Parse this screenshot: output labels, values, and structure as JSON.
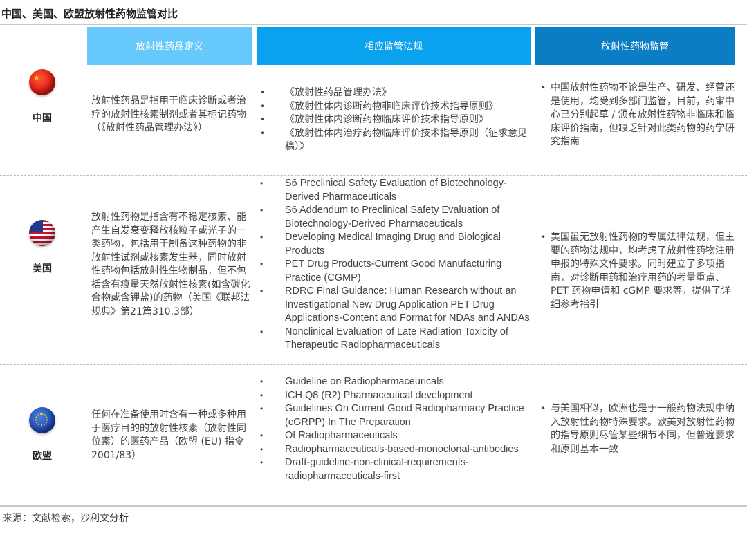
{
  "title": "中国、美国、欧盟放射性药物监管对比",
  "headers": [
    {
      "label": "放射性药品定义",
      "color": "#66c8fb"
    },
    {
      "label": "相应监管法规",
      "color": "#0aa2ee"
    },
    {
      "label": "放射性药物监管",
      "color": "#0a7dc4"
    }
  ],
  "rows": [
    {
      "country": "中国",
      "flag_icon": "china-flag",
      "definition": "放射性药品是指用于临床诊断或者治疗的放射性核素制剂或者其标记药物（《放射性药品管理办法》）",
      "laws": [
        "《放射性药品管理办法》",
        "《放射性体内诊断药物非临床评价技术指导原则》",
        "《放射性体内诊断药物临床评价技术指导原则》",
        "《放射性体内治疗药物临床评价技术指导原则（征求意见稿）》"
      ],
      "supervision": "中国放射性药物不论是生产、研发、经营还是使用，均受到多部门监管，目前，药审中心已分别起草 / 颁布放射性药物非临床和临床评价指南，但缺乏针对此类药物的药学研究指南"
    },
    {
      "country": "美国",
      "flag_icon": "usa-flag",
      "definition": "放射性药物是指含有不稳定核素、能产生自发衰变释放核粒子或光子的一类药物，包括用于制备这种药物的非放射性试剂或核素发生器，同时放射性药物包括放射性生物制品，但不包括含有痕量天然放射性核素(如含碳化合物或含钾盐)的药物（美国《联邦法规典》第21篇310.3部）",
      "laws": [
        "S6 Preclinical Safety Evaluation of Biotechnology-Derived Pharmaceuticals",
        "S6 Addendum to Preclinical Safety Evaluation of Biotechnology-Derived Pharmaceuticals",
        "Developing Medical Imaging Drug and Biological Products",
        "PET Drug Products-Current Good Manufacturing Practice (CGMP)",
        "RDRC Final Guidance: Human Research without an Investigational New Drug Application PET Drug Applications-Content and Format for NDAs and ANDAs",
        "Nonclinical Evaluation of Late Radiation Toxicity of Therapeutic Radiopharmaceuticals"
      ],
      "supervision": "美国虽无放射性药物的专属法律法规，但主要的药物法规中，均考虑了放射性药物注册申报的特殊文件要求。同时建立了多项指南，对诊断用药和治疗用药的考量重点、PET 药物申请和 cGMP 要求等，提供了详细参考指引"
    },
    {
      "country": "欧盟",
      "flag_icon": "eu-flag",
      "definition": "任何在准备使用时含有一种或多种用于医疗目的的放射性核素（放射性同位素）的医药产品（欧盟 (EU) 指令 2001/83）",
      "laws": [
        "Guideline on Radiopharmaceuricals",
        "ICH Q8 (R2) Pharmaceutical development",
        "Guidelines On Current Good Radiopharmacy Practice (cGRPP) In The Preparation",
        "Of Radiopharmaceuticals",
        "Radiopharmaceuticals-based-monoclonal-antibodies",
        "Draft-guideline-non-clinical-requirements-radiopharmaceuticals-first"
      ],
      "supervision": "与美国相似，欧洲也是于一般药物法规中纳入放射性药物特殊要求。欧美对放射性药物的指导原则尽管某些细节不同，但普遍要求和原则基本一致"
    }
  ],
  "source": "来源：文献检索，沙利文分析"
}
